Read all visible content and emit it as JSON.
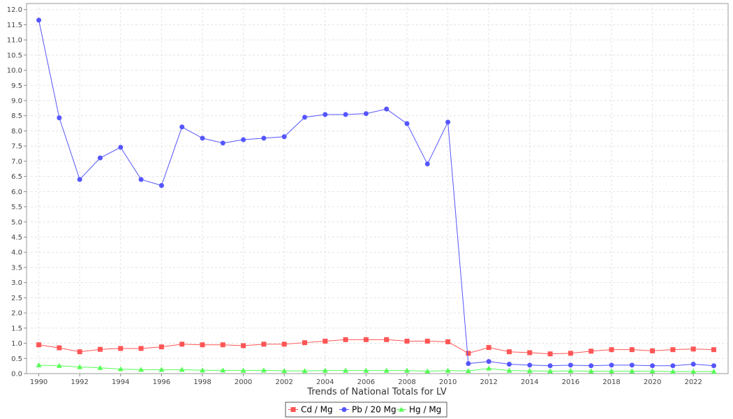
{
  "chart_data": {
    "type": "line",
    "xlabel": "Trends of National Totals for LV",
    "ylabel": "",
    "ylim": [
      0,
      12.2
    ],
    "y_ticks": [
      "0.0",
      "0.5",
      "1.0",
      "1.5",
      "2.0",
      "2.5",
      "3.0",
      "3.5",
      "4.0",
      "4.5",
      "5.0",
      "5.5",
      "6.0",
      "6.5",
      "7.0",
      "7.5",
      "8.0",
      "8.5",
      "9.0",
      "9.5",
      "10.0",
      "10.5",
      "11.0",
      "11.5",
      "12.0"
    ],
    "x_ticks": [
      "1990",
      "1992",
      "1994",
      "1996",
      "1998",
      "2000",
      "2002",
      "2004",
      "2006",
      "2008",
      "2010",
      "2012",
      "2014",
      "2016",
      "2018",
      "2020",
      "2022"
    ],
    "grid": true,
    "legend_position": "bottom-center",
    "x": [
      1990,
      1991,
      1992,
      1993,
      1994,
      1995,
      1996,
      1997,
      1998,
      1999,
      2000,
      2001,
      2002,
      2003,
      2004,
      2005,
      2006,
      2007,
      2008,
      2009,
      2010,
      2011,
      2012,
      2013,
      2014,
      2015,
      2016,
      2017,
      2018,
      2019,
      2020,
      2021,
      2022,
      2023
    ],
    "series": [
      {
        "name": "Cd / Mg",
        "color": "#ff5555",
        "marker": "square",
        "values": [
          0.95,
          0.85,
          0.72,
          0.8,
          0.83,
          0.83,
          0.88,
          0.97,
          0.95,
          0.95,
          0.92,
          0.97,
          0.97,
          1.02,
          1.07,
          1.12,
          1.12,
          1.12,
          1.07,
          1.07,
          1.05,
          0.67,
          0.86,
          0.72,
          0.69,
          0.65,
          0.67,
          0.74,
          0.79,
          0.79,
          0.75,
          0.79,
          0.81,
          0.79
        ]
      },
      {
        "name": "Pb / 20 Mg",
        "color": "#5555ff",
        "marker": "circle",
        "values": [
          11.65,
          8.43,
          6.4,
          7.11,
          7.46,
          6.4,
          6.2,
          8.13,
          7.76,
          7.6,
          7.71,
          7.76,
          7.81,
          8.45,
          8.54,
          8.54,
          8.57,
          8.72,
          8.24,
          6.91,
          8.29,
          0.33,
          0.4,
          0.31,
          0.28,
          0.26,
          0.28,
          0.26,
          0.28,
          0.28,
          0.26,
          0.26,
          0.31,
          0.26
        ]
      },
      {
        "name": "Hg / Mg",
        "color": "#55ff55",
        "marker": "triangle",
        "values": [
          0.28,
          0.26,
          0.22,
          0.19,
          0.15,
          0.13,
          0.13,
          0.13,
          0.11,
          0.11,
          0.1,
          0.11,
          0.09,
          0.09,
          0.1,
          0.1,
          0.1,
          0.1,
          0.1,
          0.08,
          0.1,
          0.09,
          0.17,
          0.1,
          0.09,
          0.08,
          0.09,
          0.08,
          0.08,
          0.08,
          0.08,
          0.07,
          0.07,
          0.07
        ]
      }
    ]
  }
}
